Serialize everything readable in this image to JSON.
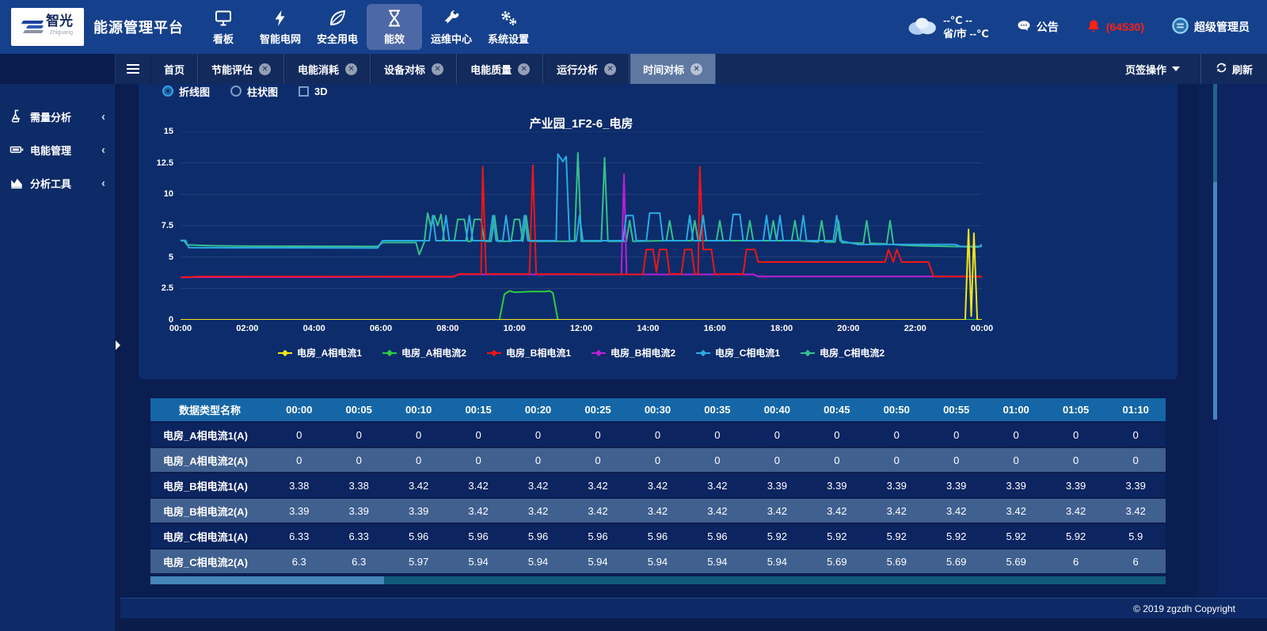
{
  "header": {
    "logo_text": "智光",
    "logo_sub": "Zhiguang",
    "app_title": "能源管理平台",
    "nav": [
      {
        "label": "看板",
        "icon": "monitor-icon",
        "active": false
      },
      {
        "label": "智能电网",
        "icon": "lightning-icon",
        "active": false
      },
      {
        "label": "安全用电",
        "icon": "leaf-icon",
        "active": false
      },
      {
        "label": "能效",
        "icon": "hourglass-icon",
        "active": true
      },
      {
        "label": "运维中心",
        "icon": "wrench-icon",
        "active": false
      },
      {
        "label": "系统设置",
        "icon": "gears-icon",
        "active": false
      }
    ],
    "weather": {
      "temp": "--℃ --",
      "region": "省/市 --℃"
    },
    "notice_label": "公告",
    "alarm_count": "(64530)",
    "alarm_color": "#ff2015",
    "user_name": "超级管理员"
  },
  "tabbar": {
    "tabs": [
      {
        "label": "首页",
        "closable": false,
        "active": false
      },
      {
        "label": "节能评估",
        "closable": true,
        "active": false
      },
      {
        "label": "电能消耗",
        "closable": true,
        "active": false
      },
      {
        "label": "设备对标",
        "closable": true,
        "active": false
      },
      {
        "label": "电能质量",
        "closable": true,
        "active": false
      },
      {
        "label": "运行分析",
        "closable": true,
        "active": false
      },
      {
        "label": "时间对标",
        "closable": true,
        "active": true
      }
    ],
    "tab_ops_label": "页签操作",
    "refresh_label": "刷新"
  },
  "sidebar": {
    "items": [
      {
        "label": "需量分析",
        "icon": "flask-icon"
      },
      {
        "label": "电能管理",
        "icon": "battery-icon"
      },
      {
        "label": "分析工具",
        "icon": "area-chart-icon"
      }
    ]
  },
  "controls": {
    "chart_types": [
      {
        "label": "折线图",
        "checked": true
      },
      {
        "label": "柱状图",
        "checked": false
      }
    ],
    "toggle_3d": {
      "label": "3D",
      "checked": false
    }
  },
  "chart_data": {
    "type": "line",
    "title": "产业园_1F2-6_电房",
    "ylim": [
      0,
      15
    ],
    "y_ticks": [
      "0",
      "2.5",
      "5",
      "7.5",
      "10",
      "12.5",
      "15"
    ],
    "x_tick_labels": [
      "00:00",
      "02:00",
      "04:00",
      "06:00",
      "08:00",
      "10:00",
      "12:00",
      "14:00",
      "16:00",
      "18:00",
      "20:00",
      "22:00",
      "00:00"
    ],
    "x_unit_hours": 24,
    "grid": true,
    "legend_position": "bottom",
    "series": [
      {
        "name": "电房_A相电流1",
        "color": "#f3e51c",
        "z": 6,
        "points": [
          [
            0,
            0
          ],
          [
            23.5,
            0
          ],
          [
            23.6,
            7.2
          ],
          [
            23.68,
            0.3
          ],
          [
            23.76,
            6.9
          ],
          [
            23.86,
            0
          ],
          [
            24,
            0
          ]
        ]
      },
      {
        "name": "电房_A相电流2",
        "color": "#2ecc40",
        "z": 2,
        "points": [
          [
            0,
            0
          ],
          [
            9.55,
            0
          ],
          [
            9.7,
            2.05
          ],
          [
            9.85,
            2.3
          ],
          [
            10.0,
            2.2
          ],
          [
            10.5,
            2.25
          ],
          [
            10.9,
            2.25
          ],
          [
            11.05,
            2.3
          ],
          [
            11.15,
            2.15
          ],
          [
            11.3,
            0
          ],
          [
            24,
            0
          ]
        ]
      },
      {
        "name": "电房_B相电流1",
        "color": "#f01515",
        "z": 4,
        "points": [
          [
            0,
            3.38
          ],
          [
            0.6,
            3.45
          ],
          [
            8.2,
            3.45
          ],
          [
            8.35,
            3.65
          ],
          [
            9.0,
            3.65
          ],
          [
            9.05,
            12.2
          ],
          [
            9.15,
            3.65
          ],
          [
            10.45,
            3.65
          ],
          [
            10.55,
            12.3
          ],
          [
            10.65,
            3.65
          ],
          [
            13.85,
            3.62
          ],
          [
            13.95,
            5.6
          ],
          [
            14.15,
            5.6
          ],
          [
            14.25,
            3.8
          ],
          [
            14.35,
            5.6
          ],
          [
            14.55,
            5.6
          ],
          [
            14.65,
            3.65
          ],
          [
            15.0,
            3.65
          ],
          [
            15.1,
            5.6
          ],
          [
            15.3,
            5.6
          ],
          [
            15.4,
            3.65
          ],
          [
            15.5,
            3.65
          ],
          [
            15.55,
            12.2
          ],
          [
            15.65,
            5.6
          ],
          [
            15.9,
            5.6
          ],
          [
            16.0,
            3.65
          ],
          [
            16.85,
            3.65
          ],
          [
            16.95,
            5.6
          ],
          [
            17.2,
            5.6
          ],
          [
            17.3,
            4.6
          ],
          [
            21.1,
            4.6
          ],
          [
            21.2,
            5.6
          ],
          [
            21.35,
            4.6
          ],
          [
            21.45,
            5.6
          ],
          [
            21.6,
            4.6
          ],
          [
            22.4,
            4.6
          ],
          [
            22.55,
            3.45
          ],
          [
            24,
            3.45
          ]
        ]
      },
      {
        "name": "电房_B相电流2",
        "color": "#bb1fd6",
        "z": 3,
        "points": [
          [
            0,
            3.39
          ],
          [
            8.15,
            3.42
          ],
          [
            8.3,
            3.62
          ],
          [
            13.2,
            3.62
          ],
          [
            13.28,
            11.6
          ],
          [
            13.36,
            3.62
          ],
          [
            17.15,
            3.62
          ],
          [
            17.3,
            3.45
          ],
          [
            24,
            3.45
          ]
        ]
      },
      {
        "name": "电房_C相电流1",
        "color": "#29aae3",
        "z": 5,
        "points": [
          [
            0,
            6.33
          ],
          [
            0.15,
            6.33
          ],
          [
            0.25,
            5.75
          ],
          [
            5.9,
            5.72
          ],
          [
            6.05,
            6.3
          ],
          [
            7.45,
            6.3
          ],
          [
            7.55,
            8.3
          ],
          [
            7.65,
            6.3
          ],
          [
            7.85,
            6.3
          ],
          [
            7.95,
            8.3
          ],
          [
            8.05,
            6.3
          ],
          [
            8.55,
            6.3
          ],
          [
            8.65,
            8.3
          ],
          [
            8.75,
            6.3
          ],
          [
            9.25,
            6.3
          ],
          [
            9.35,
            8.3
          ],
          [
            9.45,
            6.3
          ],
          [
            9.65,
            6.3
          ],
          [
            9.75,
            8.3
          ],
          [
            9.85,
            6.3
          ],
          [
            10.2,
            6.3
          ],
          [
            10.3,
            8.3
          ],
          [
            10.4,
            6.3
          ],
          [
            11.25,
            6.3
          ],
          [
            11.3,
            13.2
          ],
          [
            11.45,
            12.6
          ],
          [
            11.55,
            13.0
          ],
          [
            11.65,
            6.3
          ],
          [
            11.85,
            6.3
          ],
          [
            11.95,
            8.3
          ],
          [
            12.05,
            6.3
          ],
          [
            13.25,
            6.3
          ],
          [
            13.35,
            8.3
          ],
          [
            13.55,
            8.3
          ],
          [
            13.65,
            6.3
          ],
          [
            13.95,
            6.3
          ],
          [
            14.05,
            8.5
          ],
          [
            14.35,
            8.5
          ],
          [
            14.45,
            6.3
          ],
          [
            15.15,
            6.3
          ],
          [
            15.25,
            8.3
          ],
          [
            15.35,
            6.3
          ],
          [
            15.55,
            6.3
          ],
          [
            15.65,
            8.3
          ],
          [
            15.75,
            6.3
          ],
          [
            16.45,
            6.3
          ],
          [
            16.55,
            8.4
          ],
          [
            16.75,
            8.4
          ],
          [
            16.85,
            6.3
          ],
          [
            17.45,
            6.3
          ],
          [
            17.55,
            8.3
          ],
          [
            17.65,
            6.3
          ],
          [
            17.85,
            6.3
          ],
          [
            17.95,
            8.3
          ],
          [
            18.05,
            6.3
          ],
          [
            18.55,
            6.3
          ],
          [
            18.65,
            8.3
          ],
          [
            18.75,
            6.3
          ],
          [
            19.55,
            6.3
          ],
          [
            19.65,
            8.3
          ],
          [
            19.75,
            6.3
          ],
          [
            20.1,
            6.1
          ],
          [
            20.3,
            6.0
          ],
          [
            23.2,
            6.0
          ],
          [
            23.35,
            5.85
          ],
          [
            24,
            5.85
          ]
        ]
      },
      {
        "name": "电房_C相电流2",
        "color": "#35bf8d",
        "z": 1,
        "points": [
          [
            0,
            6.3
          ],
          [
            0.1,
            6.3
          ],
          [
            0.2,
            5.97
          ],
          [
            0.5,
            5.94
          ],
          [
            1.0,
            5.9
          ],
          [
            2.0,
            5.87
          ],
          [
            5.9,
            5.85
          ],
          [
            6.05,
            6.15
          ],
          [
            7.05,
            6.15
          ],
          [
            7.15,
            5.2
          ],
          [
            7.3,
            6.2
          ],
          [
            7.4,
            8.5
          ],
          [
            7.5,
            7.4
          ],
          [
            7.6,
            8.3
          ],
          [
            7.7,
            7.5
          ],
          [
            7.8,
            8.4
          ],
          [
            7.9,
            6.3
          ],
          [
            8.2,
            6.3
          ],
          [
            8.3,
            8.0
          ],
          [
            8.5,
            8.0
          ],
          [
            8.6,
            6.25
          ],
          [
            8.7,
            6.25
          ],
          [
            8.8,
            8.0
          ],
          [
            9.0,
            8.0
          ],
          [
            9.1,
            6.25
          ],
          [
            9.3,
            6.25
          ],
          [
            9.4,
            8.3
          ],
          [
            9.5,
            6.25
          ],
          [
            9.9,
            6.25
          ],
          [
            10.0,
            8.0
          ],
          [
            10.15,
            8.0
          ],
          [
            10.25,
            6.25
          ],
          [
            10.35,
            8.3
          ],
          [
            10.45,
            6.25
          ],
          [
            11.8,
            6.25
          ],
          [
            11.9,
            13.3
          ],
          [
            12.0,
            6.25
          ],
          [
            12.6,
            6.25
          ],
          [
            12.7,
            12.9
          ],
          [
            12.8,
            6.25
          ],
          [
            13.35,
            6.25
          ],
          [
            13.45,
            7.9
          ],
          [
            13.55,
            6.25
          ],
          [
            14.55,
            6.3
          ],
          [
            14.65,
            7.9
          ],
          [
            14.75,
            6.3
          ],
          [
            15.3,
            6.3
          ],
          [
            15.4,
            7.9
          ],
          [
            15.5,
            6.3
          ],
          [
            16.05,
            6.3
          ],
          [
            16.15,
            7.9
          ],
          [
            16.25,
            6.3
          ],
          [
            16.95,
            6.3
          ],
          [
            17.05,
            7.9
          ],
          [
            17.15,
            6.3
          ],
          [
            17.65,
            6.3
          ],
          [
            17.75,
            7.9
          ],
          [
            17.85,
            6.3
          ],
          [
            18.3,
            6.3
          ],
          [
            18.4,
            7.9
          ],
          [
            18.5,
            6.3
          ],
          [
            19.1,
            6.2
          ],
          [
            19.2,
            7.9
          ],
          [
            19.3,
            6.2
          ],
          [
            19.6,
            6.2
          ],
          [
            19.7,
            7.9
          ],
          [
            19.8,
            6.15
          ],
          [
            20.45,
            6.1
          ],
          [
            20.55,
            7.9
          ],
          [
            20.65,
            6.1
          ],
          [
            21.15,
            6.05
          ],
          [
            21.25,
            7.9
          ],
          [
            21.35,
            6.0
          ],
          [
            21.6,
            5.95
          ],
          [
            22.0,
            5.9
          ],
          [
            23.0,
            5.85
          ],
          [
            23.9,
            5.8
          ],
          [
            24,
            6.0
          ]
        ]
      }
    ]
  },
  "table": {
    "header_first": "数据类型名称",
    "time_columns": [
      "00:00",
      "00:05",
      "00:10",
      "00:15",
      "00:20",
      "00:25",
      "00:30",
      "00:35",
      "00:40",
      "00:45",
      "00:50",
      "00:55",
      "01:00",
      "01:05",
      "01:10"
    ],
    "rows": [
      {
        "name": "电房_A相电流1(A)",
        "values": [
          "0",
          "0",
          "0",
          "0",
          "0",
          "0",
          "0",
          "0",
          "0",
          "0",
          "0",
          "0",
          "0",
          "0",
          "0"
        ]
      },
      {
        "name": "电房_A相电流2(A)",
        "values": [
          "0",
          "0",
          "0",
          "0",
          "0",
          "0",
          "0",
          "0",
          "0",
          "0",
          "0",
          "0",
          "0",
          "0",
          "0"
        ]
      },
      {
        "name": "电房_B相电流1(A)",
        "values": [
          "3.38",
          "3.38",
          "3.42",
          "3.42",
          "3.42",
          "3.42",
          "3.42",
          "3.42",
          "3.39",
          "3.39",
          "3.39",
          "3.39",
          "3.39",
          "3.39",
          "3.39"
        ]
      },
      {
        "name": "电房_B相电流2(A)",
        "values": [
          "3.39",
          "3.39",
          "3.39",
          "3.42",
          "3.42",
          "3.42",
          "3.42",
          "3.42",
          "3.42",
          "3.42",
          "3.42",
          "3.42",
          "3.42",
          "3.42",
          "3.42"
        ]
      },
      {
        "name": "电房_C相电流1(A)",
        "values": [
          "6.33",
          "6.33",
          "5.96",
          "5.96",
          "5.96",
          "5.96",
          "5.96",
          "5.96",
          "5.92",
          "5.92",
          "5.92",
          "5.92",
          "5.92",
          "5.92",
          "5.9"
        ]
      },
      {
        "name": "电房_C相电流2(A)",
        "values": [
          "6.3",
          "6.3",
          "5.97",
          "5.94",
          "5.94",
          "5.94",
          "5.94",
          "5.94",
          "5.94",
          "5.69",
          "5.69",
          "5.69",
          "5.69",
          "6",
          "6"
        ]
      }
    ]
  },
  "footer": {
    "copyright": "© 2019 zgzdh Copyright"
  }
}
